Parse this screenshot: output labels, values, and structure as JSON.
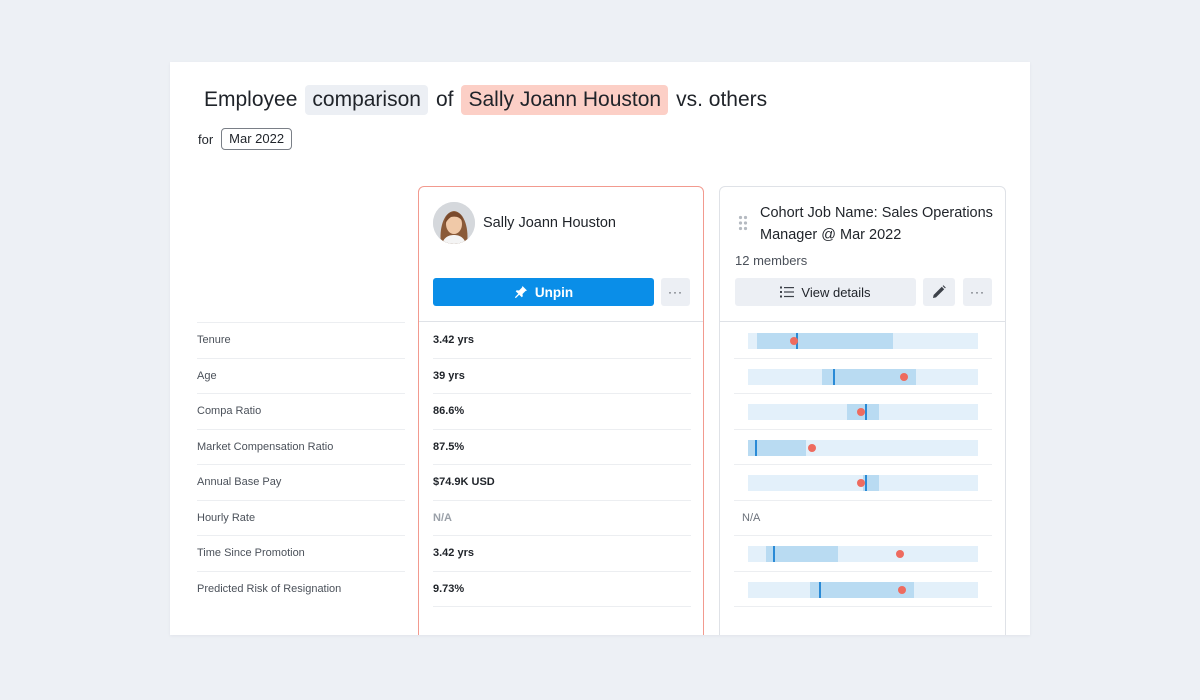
{
  "header": {
    "word1": "Employee",
    "chip1": "comparison",
    "word2": "of",
    "chip2": "Sally Joann Houston",
    "word3": "vs. others",
    "for_label": "for",
    "date": "Mar 2022"
  },
  "metrics": [
    "Tenure",
    "Age",
    "Compa Ratio",
    "Market Compensation Ratio",
    "Annual Base Pay",
    "Hourly Rate",
    "Time Since Promotion",
    "Predicted Risk of Resignation"
  ],
  "employee": {
    "name": "Sally Joann Houston",
    "unpin_label": "Unpin",
    "more_label": "···",
    "values": [
      "3.42 yrs",
      "39 yrs",
      "86.6%",
      "87.5%",
      "$74.9K USD",
      "N/A",
      "3.42 yrs",
      "9.73%"
    ]
  },
  "cohort": {
    "title": "Cohort Job Name: Sales Operations Manager @ Mar 2022",
    "members": "12 members",
    "view_details_label": "View details",
    "more_label": "···",
    "na_label": "N/A",
    "bars": [
      {
        "range": [
          0.04,
          0.63
        ],
        "median": 0.21,
        "point": 0.2
      },
      {
        "range": [
          0.32,
          0.73
        ],
        "median": 0.37,
        "point": 0.68
      },
      {
        "range": [
          0.43,
          0.57
        ],
        "median": 0.51,
        "point": 0.49
      },
      {
        "range": [
          0.0,
          0.25
        ],
        "median": 0.03,
        "point": 0.28
      },
      {
        "range": [
          0.5,
          0.57
        ],
        "median": 0.51,
        "point": 0.49
      },
      null,
      {
        "range": [
          0.08,
          0.39
        ],
        "median": 0.11,
        "point": 0.66
      },
      {
        "range": [
          0.27,
          0.72
        ],
        "median": 0.31,
        "point": 0.67
      }
    ]
  },
  "colors": {
    "accent": "#0a8ee8",
    "employee_highlight": "#fccfc6",
    "point": "#ee6b5f",
    "range": "#b9dbf2",
    "track": "#e3f0fa"
  }
}
